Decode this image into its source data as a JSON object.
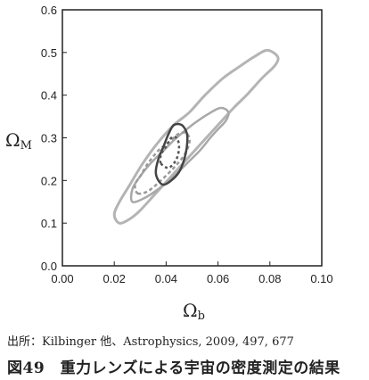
{
  "chart_data": {
    "type": "contour",
    "xlabel": "Ω",
    "xlabel_sub": "b",
    "ylabel": "Ω",
    "ylabel_sub": "M",
    "xlim": [
      0.0,
      0.1
    ],
    "ylim": [
      0.0,
      0.6
    ],
    "xticks": [
      "0.00",
      "0.02",
      "0.04",
      "0.06",
      "0.08",
      "0.10"
    ],
    "yticks": [
      "0.0",
      "0.1",
      "0.2",
      "0.3",
      "0.4",
      "0.5",
      "0.6"
    ],
    "contours": [
      {
        "color": "#b4b4b4",
        "dash": "",
        "width": 3,
        "points": [
          [
            0.022,
            0.1
          ],
          [
            0.026,
            0.11
          ],
          [
            0.03,
            0.13
          ],
          [
            0.036,
            0.17
          ],
          [
            0.042,
            0.21
          ],
          [
            0.048,
            0.25
          ],
          [
            0.054,
            0.29
          ],
          [
            0.06,
            0.33
          ],
          [
            0.066,
            0.37
          ],
          [
            0.071,
            0.4
          ],
          [
            0.077,
            0.44
          ],
          [
            0.082,
            0.47
          ],
          [
            0.083,
            0.49
          ],
          [
            0.079,
            0.505
          ],
          [
            0.074,
            0.49
          ],
          [
            0.069,
            0.47
          ],
          [
            0.062,
            0.44
          ],
          [
            0.055,
            0.4
          ],
          [
            0.049,
            0.36
          ],
          [
            0.043,
            0.33
          ],
          [
            0.037,
            0.29
          ],
          [
            0.031,
            0.24
          ],
          [
            0.026,
            0.19
          ],
          [
            0.022,
            0.15
          ],
          [
            0.02,
            0.12
          ]
        ]
      },
      {
        "color": "#a8a8a8",
        "dash": "",
        "width": 2.5,
        "points": [
          [
            0.027,
            0.15
          ],
          [
            0.032,
            0.16
          ],
          [
            0.037,
            0.18
          ],
          [
            0.043,
            0.21
          ],
          [
            0.048,
            0.24
          ],
          [
            0.053,
            0.27
          ],
          [
            0.057,
            0.3
          ],
          [
            0.06,
            0.32
          ],
          [
            0.063,
            0.34
          ],
          [
            0.064,
            0.36
          ],
          [
            0.061,
            0.37
          ],
          [
            0.056,
            0.355
          ],
          [
            0.05,
            0.33
          ],
          [
            0.044,
            0.3
          ],
          [
            0.039,
            0.27
          ],
          [
            0.034,
            0.24
          ],
          [
            0.03,
            0.21
          ],
          [
            0.027,
            0.18
          ]
        ]
      },
      {
        "color": "#9a9a9a",
        "dash": "4,3",
        "width": 2.5,
        "points": [
          [
            0.029,
            0.17
          ],
          [
            0.033,
            0.175
          ],
          [
            0.038,
            0.2
          ],
          [
            0.043,
            0.23
          ],
          [
            0.047,
            0.26
          ],
          [
            0.049,
            0.29
          ],
          [
            0.048,
            0.31
          ],
          [
            0.045,
            0.31
          ],
          [
            0.041,
            0.29
          ],
          [
            0.037,
            0.27
          ],
          [
            0.033,
            0.24
          ],
          [
            0.03,
            0.21
          ],
          [
            0.028,
            0.19
          ]
        ]
      },
      {
        "color": "#444444",
        "dash": "",
        "width": 2.5,
        "points": [
          [
            0.037,
            0.2
          ],
          [
            0.039,
            0.19
          ],
          [
            0.042,
            0.2
          ],
          [
            0.045,
            0.22
          ],
          [
            0.047,
            0.25
          ],
          [
            0.048,
            0.28
          ],
          [
            0.048,
            0.31
          ],
          [
            0.046,
            0.33
          ],
          [
            0.043,
            0.33
          ],
          [
            0.041,
            0.31
          ],
          [
            0.039,
            0.28
          ],
          [
            0.037,
            0.25
          ],
          [
            0.036,
            0.22
          ]
        ]
      },
      {
        "color": "#555555",
        "dash": "3,3",
        "width": 2.5,
        "points": [
          [
            0.038,
            0.24
          ],
          [
            0.041,
            0.23
          ],
          [
            0.044,
            0.25
          ],
          [
            0.045,
            0.28
          ],
          [
            0.044,
            0.3
          ],
          [
            0.042,
            0.3
          ],
          [
            0.04,
            0.28
          ],
          [
            0.038,
            0.26
          ]
        ]
      }
    ]
  },
  "source": "出所：Kilbinger 他、Astrophysics, 2009, 497, 677",
  "caption": "図49　重力レンズによる宇宙の密度測定の結果"
}
